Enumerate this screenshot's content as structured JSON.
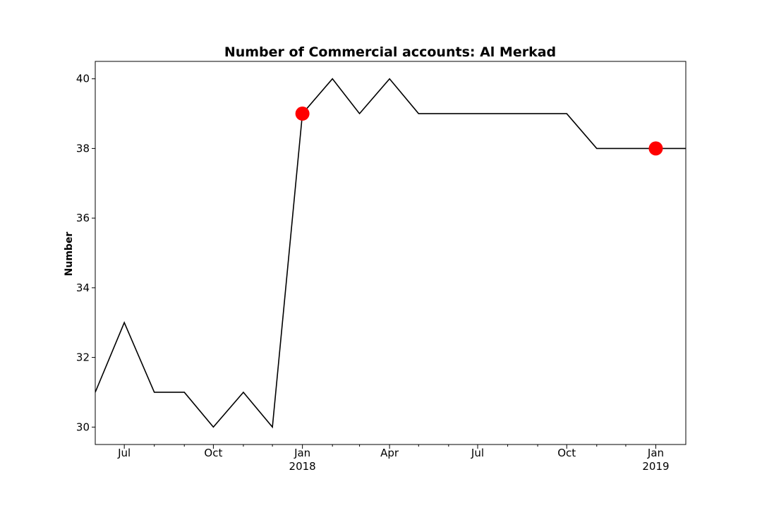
{
  "chart_data": {
    "type": "line",
    "title": "Number of Commercial accounts: Al Merkad",
    "xlabel": "",
    "ylabel": "Number",
    "x": [
      "2017-06-01",
      "2017-07-01",
      "2017-08-01",
      "2017-09-01",
      "2017-10-01",
      "2017-11-01",
      "2017-12-01",
      "2018-01-01",
      "2018-02-01",
      "2018-03-01",
      "2018-04-01",
      "2018-05-01",
      "2018-06-01",
      "2018-07-01",
      "2018-08-01",
      "2018-09-01",
      "2018-10-01",
      "2018-11-01",
      "2018-12-01",
      "2019-01-01",
      "2019-02-01"
    ],
    "series": [
      {
        "values": [
          31,
          33,
          31,
          31,
          30,
          31,
          30,
          39,
          40,
          39,
          40,
          39,
          39,
          39,
          39,
          39,
          39,
          38,
          38,
          38,
          38
        ],
        "color": "#000000"
      }
    ],
    "highlights": [
      {
        "x": "2018-01-01",
        "y": 39,
        "color": "#ff0000"
      },
      {
        "x": "2019-01-01",
        "y": 38,
        "color": "#ff0000"
      }
    ],
    "xlim": [
      "2017-06-01",
      "2019-02-01"
    ],
    "ylim": [
      29.5,
      40.5
    ],
    "yticks": [
      30,
      32,
      34,
      36,
      38,
      40
    ],
    "xticks": [
      {
        "x": "2017-07-01",
        "label": "Jul",
        "sublabel": ""
      },
      {
        "x": "2017-10-01",
        "label": "Oct",
        "sublabel": ""
      },
      {
        "x": "2018-01-01",
        "label": "Jan",
        "sublabel": "2018"
      },
      {
        "x": "2018-04-01",
        "label": "Apr",
        "sublabel": ""
      },
      {
        "x": "2018-07-01",
        "label": "Jul",
        "sublabel": ""
      },
      {
        "x": "2018-10-01",
        "label": "Oct",
        "sublabel": ""
      },
      {
        "x": "2019-01-01",
        "label": "Jan",
        "sublabel": "2019"
      }
    ],
    "minor_xticks": [
      "2017-08-01",
      "2017-09-01",
      "2017-11-01",
      "2017-12-01",
      "2018-02-01",
      "2018-03-01",
      "2018-05-01",
      "2018-06-01",
      "2018-08-01",
      "2018-09-01",
      "2018-11-01",
      "2018-12-01"
    ],
    "grid": false,
    "legend": "none"
  }
}
